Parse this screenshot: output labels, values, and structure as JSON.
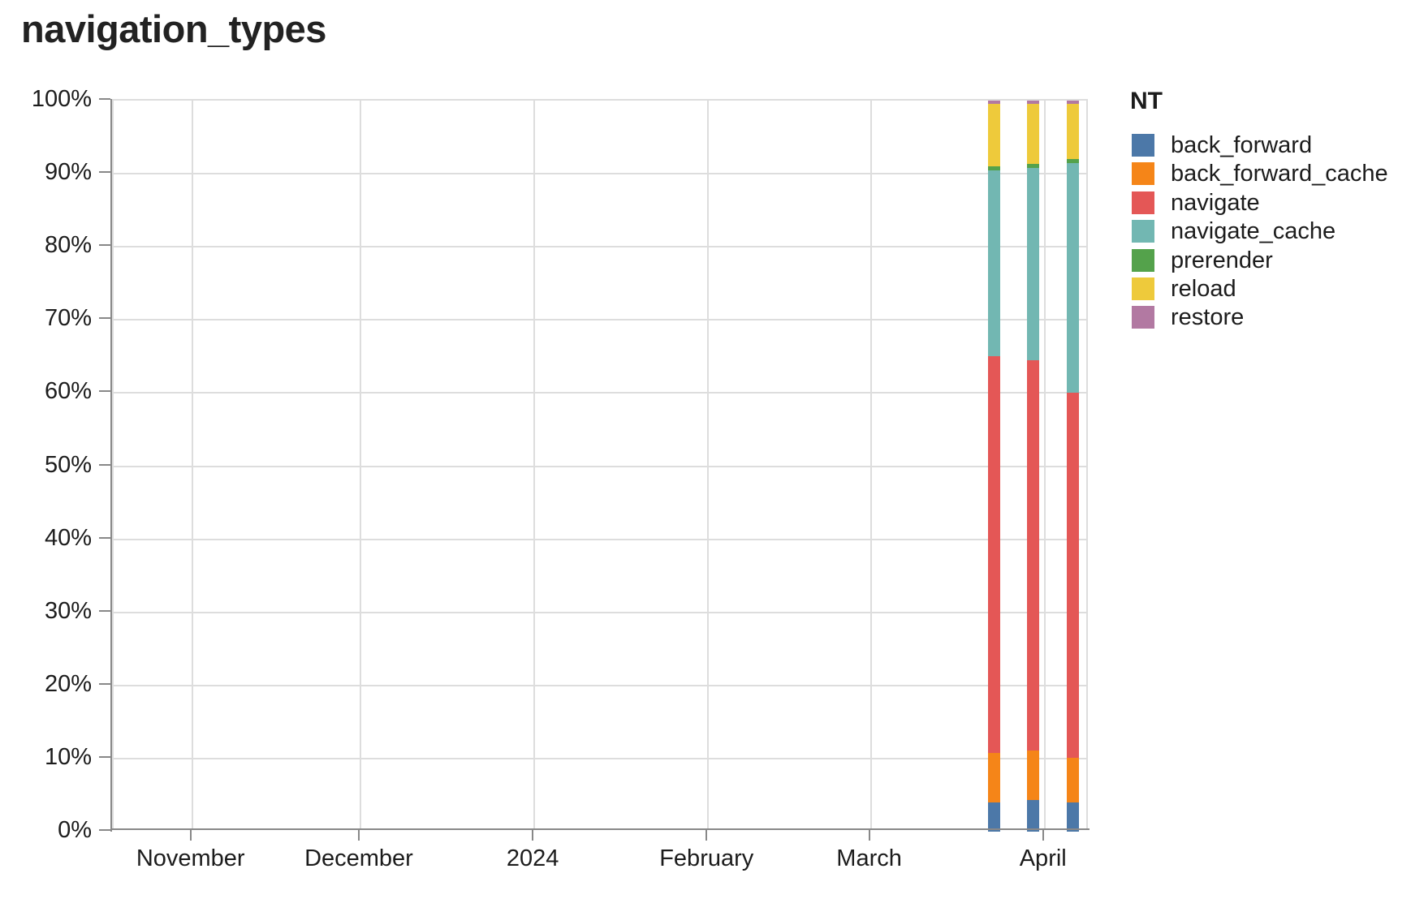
{
  "title": "navigation_types",
  "legend": {
    "title": "NT",
    "entries": [
      "back_forward",
      "back_forward_cache",
      "navigate",
      "navigate_cache",
      "prerender",
      "reload",
      "restore"
    ]
  },
  "colors": {
    "grid": "#dddddd",
    "axis_domain": "#888888",
    "text": "#1c1c1c"
  },
  "chart_data": {
    "type": "bar",
    "stacked": true,
    "title": "navigation_types",
    "xlabel": "",
    "ylabel": "",
    "unit": "percent",
    "ylim": [
      0,
      100
    ],
    "grid": true,
    "legend_position": "right",
    "x_domain": [
      "2023-10-18",
      "2024-04-09"
    ],
    "x_ticks": [
      {
        "date": "2023-11-01",
        "label": "November"
      },
      {
        "date": "2023-12-01",
        "label": "December"
      },
      {
        "date": "2024-01-01",
        "label": "2024"
      },
      {
        "date": "2024-02-01",
        "label": "February"
      },
      {
        "date": "2024-03-01",
        "label": "March"
      },
      {
        "date": "2024-04-01",
        "label": "April"
      }
    ],
    "y_ticks": [
      {
        "value": 0,
        "label": "0%"
      },
      {
        "value": 10,
        "label": "10%"
      },
      {
        "value": 20,
        "label": "20%"
      },
      {
        "value": 30,
        "label": "30%"
      },
      {
        "value": 40,
        "label": "40%"
      },
      {
        "value": 50,
        "label": "50%"
      },
      {
        "value": 60,
        "label": "60%"
      },
      {
        "value": 70,
        "label": "70%"
      },
      {
        "value": 80,
        "label": "80%"
      },
      {
        "value": 90,
        "label": "90%"
      },
      {
        "value": 100,
        "label": "100%"
      }
    ],
    "series": [
      {
        "name": "back_forward",
        "color": "#4c78a8"
      },
      {
        "name": "back_forward_cache",
        "color": "#f58518"
      },
      {
        "name": "navigate",
        "color": "#e45756"
      },
      {
        "name": "navigate_cache",
        "color": "#72b7b2"
      },
      {
        "name": "prerender",
        "color": "#54a24b"
      },
      {
        "name": "reload",
        "color": "#eeca3b"
      },
      {
        "name": "restore",
        "color": "#b279a2"
      }
    ],
    "bars": [
      {
        "x": "2024-03-23",
        "values": {
          "back_forward": 4.0,
          "back_forward_cache": 6.8,
          "navigate": 54.2,
          "navigate_cache": 25.5,
          "prerender": 0.5,
          "reload": 8.6,
          "restore": 0.4
        }
      },
      {
        "x": "2024-03-30",
        "values": {
          "back_forward": 4.3,
          "back_forward_cache": 6.8,
          "navigate": 53.4,
          "navigate_cache": 26.3,
          "prerender": 0.5,
          "reload": 8.3,
          "restore": 0.4
        }
      },
      {
        "x": "2024-04-06",
        "values": {
          "back_forward": 4.0,
          "back_forward_cache": 6.1,
          "navigate": 49.9,
          "navigate_cache": 31.4,
          "prerender": 0.6,
          "reload": 7.6,
          "restore": 0.4
        }
      }
    ]
  }
}
